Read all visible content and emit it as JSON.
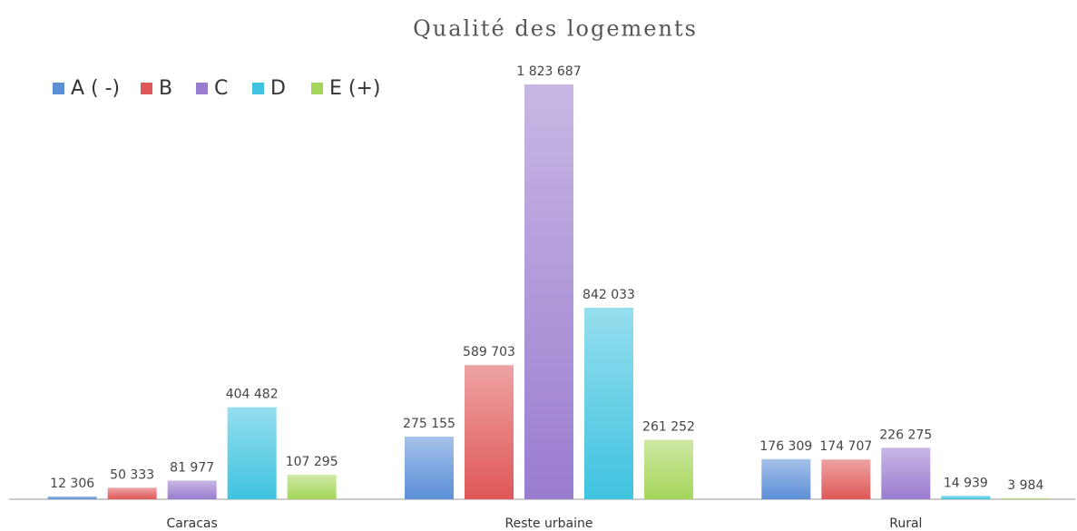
{
  "chart_data": {
    "type": "bar",
    "title": "Qualité des logements",
    "categories": [
      "Caracas",
      "Reste urbaine",
      "Rural"
    ],
    "series": [
      {
        "name": "A ( -)",
        "color": "#5b8fd6",
        "values": [
          12306,
          275155,
          176309
        ],
        "value_labels": [
          "12 306",
          "275 155",
          "176 309"
        ]
      },
      {
        "name": "B",
        "color": "#e05757",
        "values": [
          50333,
          589703,
          174707
        ],
        "value_labels": [
          "50 333",
          "589 703",
          "174 707"
        ]
      },
      {
        "name": "C",
        "color": "#9a7ccf",
        "values": [
          81977,
          1823687,
          226275
        ],
        "value_labels": [
          "81 977",
          "1 823 687",
          "226 275"
        ]
      },
      {
        "name": "D",
        "color": "#3fc3e0",
        "values": [
          404482,
          842033,
          14939
        ],
        "value_labels": [
          "404 482",
          "842 033",
          "14 939"
        ]
      },
      {
        "name": "E (+)",
        "color": "#a5d65a",
        "values": [
          107295,
          261252,
          3984
        ],
        "value_labels": [
          "107 295",
          "261 252",
          "3 984"
        ]
      }
    ],
    "legend": "top-left"
  }
}
